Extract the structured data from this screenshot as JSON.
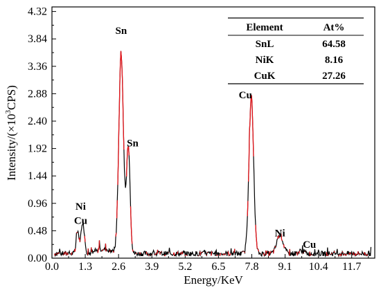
{
  "chart_data": {
    "type": "line",
    "xlabel": "Energy/KeV",
    "ylabel_prefix": "Intensity/(×10",
    "ylabel_exp": "3",
    "ylabel_suffix": "CPS)",
    "xlim": [
      0.0,
      12.6
    ],
    "ylim": [
      0.0,
      4.4
    ],
    "xticks": [
      "0.0",
      "1.3",
      "2.6",
      "3.9",
      "5.2",
      "6.5",
      "7.8",
      "9.1",
      "10.4",
      "11.7"
    ],
    "xtick_values": [
      0.0,
      1.3,
      2.6,
      3.9,
      5.2,
      6.5,
      7.8,
      9.1,
      10.4,
      11.7
    ],
    "yticks": [
      "0.00",
      "0.48",
      "0.96",
      "1.44",
      "1.92",
      "2.40",
      "2.88",
      "3.36",
      "3.84",
      "4.32"
    ],
    "ytick_values": [
      0.0,
      0.48,
      0.96,
      1.44,
      1.92,
      2.4,
      2.88,
      3.36,
      3.84,
      4.32
    ],
    "colors": {
      "spectrum": "#000000",
      "spectrum_highlight": "#e8151b"
    },
    "baseline": 0.08,
    "peaks": [
      {
        "label": "Ni",
        "x": 1.0,
        "y": 0.4,
        "w": 0.05
      },
      {
        "label": "Cu",
        "x": 1.2,
        "y": 0.55,
        "w": 0.07
      },
      {
        "label": "Sn",
        "x": 2.7,
        "y": 3.5,
        "w": 0.09
      },
      {
        "label": "Sn",
        "x": 2.98,
        "y": 1.9,
        "w": 0.07
      },
      {
        "label": "Cu",
        "x": 7.78,
        "y": 2.75,
        "w": 0.09
      },
      {
        "label": "Ni",
        "x": 8.9,
        "y": 0.33,
        "w": 0.12
      },
      {
        "label": "Cu",
        "x": 9.75,
        "y": 0.05,
        "w": 0.1
      }
    ],
    "peak_labels": [
      {
        "text": "Ni",
        "x": 1.12,
        "y": 0.85
      },
      {
        "text": "Cu",
        "x": 1.12,
        "y": 0.6
      },
      {
        "text": "Sn",
        "x": 2.7,
        "y": 3.93
      },
      {
        "text": "Sn",
        "x": 3.15,
        "y": 1.96
      },
      {
        "text": "Cu",
        "x": 7.55,
        "y": 2.8
      },
      {
        "text": "Ni",
        "x": 8.9,
        "y": 0.38
      },
      {
        "text": "Cu",
        "x": 10.05,
        "y": 0.18
      }
    ]
  },
  "table": {
    "headers": [
      "Element",
      "At%"
    ],
    "rows": [
      {
        "element": "SnL",
        "at": "64.58"
      },
      {
        "element": "NiK",
        "at": "8.16"
      },
      {
        "element": "CuK",
        "at": "27.26"
      }
    ]
  }
}
